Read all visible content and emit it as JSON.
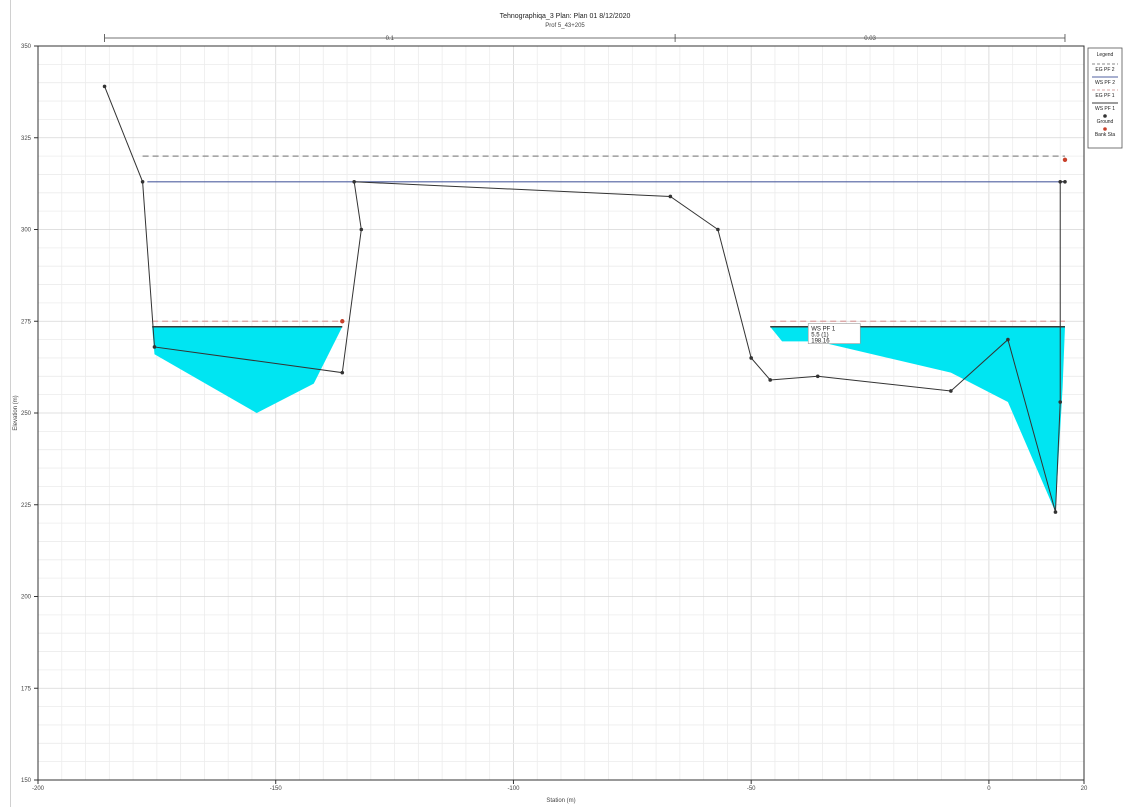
{
  "chart_data": {
    "type": "area",
    "title": "Tehnographiqa_3      Plan: Plan 01    8/12/2020",
    "subtitle": "Prof 5_43+205",
    "xlabel": "Station (m)",
    "ylabel": "Elevation (m)",
    "xlim": [
      -200,
      20
    ],
    "ylim": [
      150,
      350
    ],
    "grid": true,
    "legend_position": "top-right",
    "x_ticks": [
      {
        "value": -200,
        "label": "-200"
      },
      {
        "value": -150,
        "label": "-150"
      },
      {
        "value": -100,
        "label": "-100"
      },
      {
        "value": -50,
        "label": "-50"
      },
      {
        "value": 0,
        "label": "0"
      },
      {
        "value": 20,
        "label": "20"
      }
    ],
    "y_ticks": [
      {
        "value": 150,
        "label": "150"
      },
      {
        "value": 175,
        "label": "175"
      },
      {
        "value": 200,
        "label": "200"
      },
      {
        "value": 225,
        "label": "225"
      },
      {
        "value": 250,
        "label": "250"
      },
      {
        "value": 275,
        "label": "275"
      },
      {
        "value": 300,
        "label": "300"
      },
      {
        "value": 325,
        "label": "325"
      },
      {
        "value": 350,
        "label": "350"
      }
    ],
    "ground": {
      "x": [
        -186,
        -178,
        -175.5,
        -136,
        -132,
        -133.5,
        -67,
        -57,
        -50,
        -46,
        -36,
        -8,
        4,
        14,
        15,
        15,
        16
      ],
      "y": [
        339,
        313,
        268,
        261,
        300,
        313,
        309,
        300,
        265,
        259,
        260,
        256,
        270,
        223,
        253,
        313,
        313
      ]
    },
    "water_pools": [
      {
        "x": [
          -176,
          -136,
          -142,
          -154,
          -175.5
        ],
        "y": [
          273.5,
          273.5,
          258,
          250,
          266
        ]
      },
      {
        "x": [
          -46,
          16,
          15.5,
          14,
          4,
          -8,
          -36,
          -43.5
        ],
        "y": [
          273.5,
          273.5,
          257,
          223,
          253,
          261,
          269.5,
          269.5
        ]
      }
    ],
    "ws_lines": [
      {
        "name": "WS PF 1",
        "x": [
          -176,
          -136
        ],
        "y": [
          273.5,
          273.5
        ],
        "color": "#3a3a3a",
        "dash": false
      },
      {
        "name": "WS PF 1",
        "x": [
          -46,
          16
        ],
        "y": [
          273.5,
          273.5
        ],
        "color": "#3a3a3a",
        "dash": false
      }
    ],
    "eg_lines": [
      {
        "x": [
          -176,
          -136
        ],
        "y": [
          275,
          275
        ],
        "color": "#d9a0a0",
        "dash": true
      },
      {
        "x": [
          -46,
          16
        ],
        "y": [
          275,
          275
        ],
        "color": "#d9a0a0",
        "dash": true
      },
      {
        "x": [
          -178,
          16
        ],
        "y": [
          320,
          320
        ],
        "color": "#8a8a8a",
        "dash": true
      }
    ],
    "top_line": {
      "x": [
        -177,
        16
      ],
      "y": [
        313,
        313
      ],
      "color": "#5060a0"
    },
    "bank_stations": [
      {
        "x": -136,
        "y": 275
      },
      {
        "x": 16,
        "y": 319
      }
    ],
    "reach_bar": {
      "ticks": [
        -186,
        -66,
        16
      ],
      "labels": [
        {
          "x": -126,
          "text": "0.1"
        },
        {
          "x": -25,
          "text": "0.03"
        }
      ]
    },
    "annotation": {
      "x": -38,
      "y": 270,
      "lines": [
        "WS PF 1",
        "5.5 (1)",
        "198.16"
      ]
    },
    "legend": {
      "title": "Legend",
      "entries": [
        {
          "label": "EG PF 2",
          "color": "#8a8a8a",
          "kind": "dash"
        },
        {
          "label": "WS PF 2",
          "color": "#5060a0",
          "kind": "line"
        },
        {
          "label": "EG PF 1",
          "color": "#d9a0a0",
          "kind": "dash"
        },
        {
          "label": "WS PF 1",
          "color": "#3a3a3a",
          "kind": "line"
        },
        {
          "label": "Ground",
          "color": "#333333",
          "kind": "marker"
        },
        {
          "label": "Bank Sta",
          "color": "#c8402a",
          "kind": "dot"
        }
      ]
    },
    "colors": {
      "water": "#00e5f2",
      "ground": "#333333",
      "grid_major": "#d6d6d6",
      "grid_minor": "#ececec",
      "frame": "#333333",
      "bank": "#c8402a"
    }
  }
}
